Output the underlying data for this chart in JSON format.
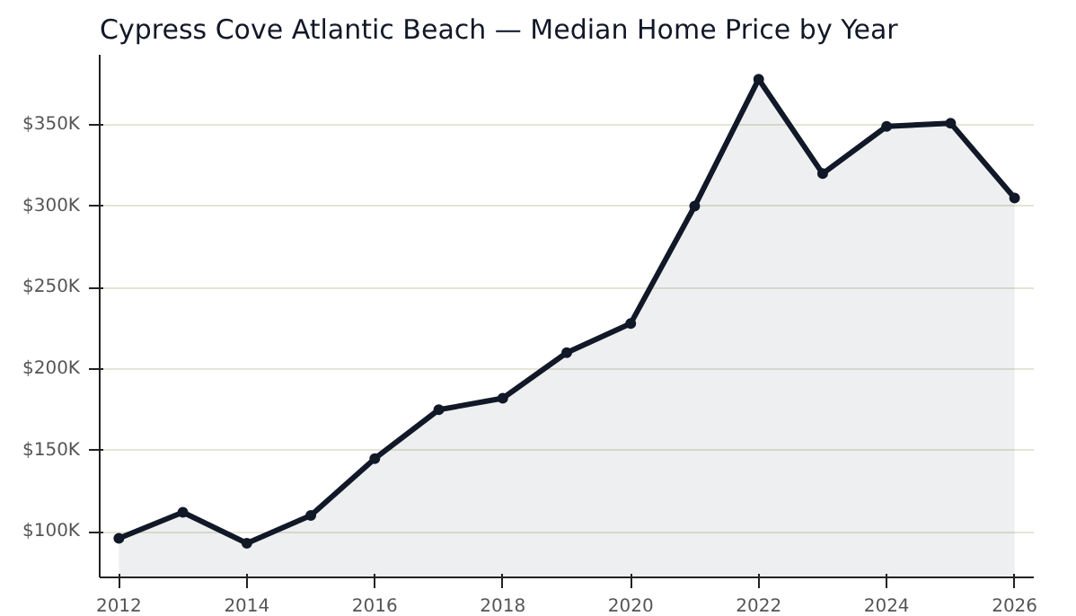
{
  "chart_data": {
    "type": "area",
    "title": "Cypress Cove Atlantic Beach — Median Home Price by Year",
    "x": [
      2012,
      2013,
      2014,
      2015,
      2016,
      2017,
      2018,
      2019,
      2020,
      2021,
      2022,
      2023,
      2024,
      2025,
      2026
    ],
    "series": [
      {
        "color": "#111827",
        "values": [
          96,
          112,
          93,
          110,
          145,
          175,
          182,
          210,
          228,
          300,
          378,
          320,
          349,
          351,
          305
        ]
      }
    ],
    "xlim": [
      2011.7,
      2026.3
    ],
    "xticks": [
      2012,
      2014,
      2016,
      2018,
      2020,
      2022,
      2024,
      2026
    ],
    "ylim": [
      72,
      393
    ],
    "yticks": [
      {
        "value": 100,
        "label": "$100K"
      },
      {
        "value": 150,
        "label": "$150K"
      },
      {
        "value": 200,
        "label": "$200K"
      },
      {
        "value": 250,
        "label": "$250K"
      },
      {
        "value": 300,
        "label": "$300K"
      },
      {
        "value": 350,
        "label": "$350K"
      }
    ],
    "grid": "y",
    "marker": "circle",
    "line_style": "solid"
  }
}
